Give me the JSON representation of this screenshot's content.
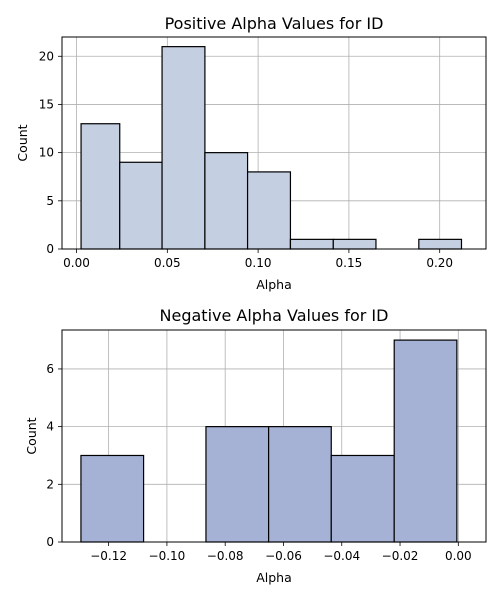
{
  "chart_data": [
    {
      "type": "bar",
      "title": "Positive Alpha Values for ID",
      "xlabel": "Alpha",
      "ylabel": "Count",
      "bin_edges": [
        0.0025,
        0.0238,
        0.0471,
        0.0707,
        0.0942,
        0.1178,
        0.1414,
        0.1649,
        0.1885,
        0.212
      ],
      "values": [
        13,
        9,
        21,
        10,
        8,
        1,
        1,
        0,
        1
      ],
      "xlim": [
        -0.008,
        0.2255
      ],
      "ylim": [
        0,
        22
      ],
      "xticks": [
        0.0,
        0.05,
        0.1,
        0.15,
        0.2
      ],
      "xtick_labels": [
        "0.00",
        "0.05",
        "0.10",
        "0.15",
        "0.20"
      ],
      "yticks": [
        0,
        5,
        10,
        15,
        20
      ],
      "ytick_labels": [
        "0",
        "5",
        "10",
        "15",
        "20"
      ],
      "grid": true,
      "bar_color": "#c5cfe2",
      "edge_color": "#000000"
    },
    {
      "type": "bar",
      "title": "Negative Alpha Values for ID",
      "xlabel": "Alpha",
      "ylabel": "Count",
      "bin_edges": [
        -0.1295,
        -0.108,
        -0.0866,
        -0.0651,
        -0.0436,
        -0.022,
        -0.0005
      ],
      "values": [
        3,
        0,
        4,
        4,
        3,
        7
      ],
      "xlim": [
        -0.136,
        0.0095
      ],
      "ylim": [
        0,
        7.35
      ],
      "xticks": [
        -0.12,
        -0.1,
        -0.08,
        -0.06,
        -0.04,
        -0.02,
        0.0
      ],
      "xtick_labels": [
        "−0.12",
        "−0.10",
        "−0.08",
        "−0.06",
        "−0.04",
        "−0.02",
        "0.00"
      ],
      "yticks": [
        0,
        2,
        4,
        6
      ],
      "ytick_labels": [
        "0",
        "2",
        "4",
        "6"
      ],
      "grid": true,
      "bar_color": "#a5b1d5",
      "edge_color": "#000000"
    }
  ]
}
